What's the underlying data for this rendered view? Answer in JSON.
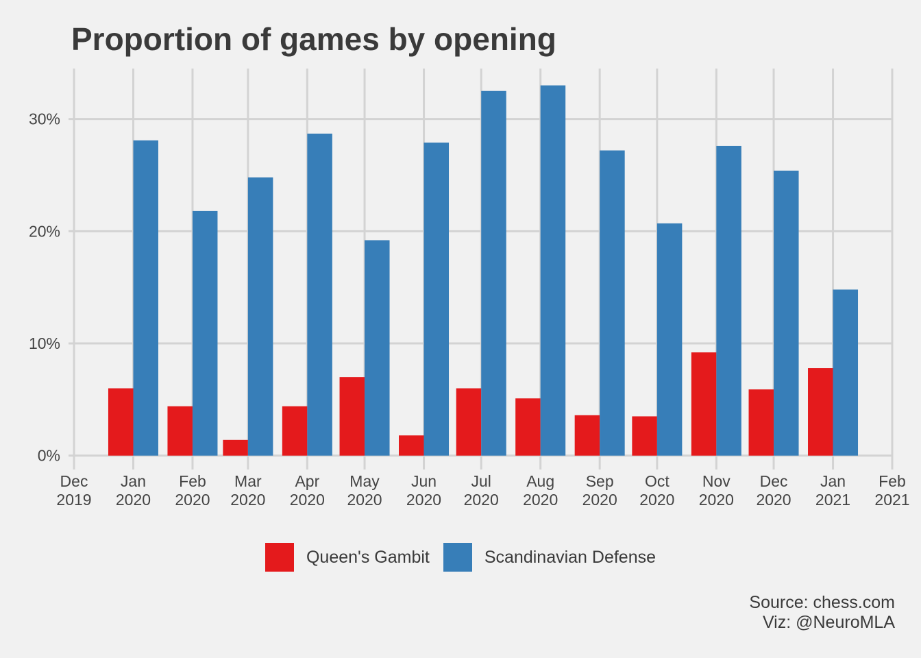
{
  "chart_data": {
    "type": "bar",
    "title": "Proportion of games by opening",
    "xlabel": "",
    "ylabel": "",
    "ylim": [
      -0.0075,
      0.345
    ],
    "y_ticks": [
      0,
      0.1,
      0.2,
      0.3
    ],
    "y_tick_labels": [
      "0%",
      "10%",
      "20%",
      "30%"
    ],
    "x_ticks": [
      {
        "date": "2019-12-01",
        "line1": "Dec",
        "line2": "2019"
      },
      {
        "date": "2020-01-01",
        "line1": "Jan",
        "line2": "2020"
      },
      {
        "date": "2020-02-01",
        "line1": "Feb",
        "line2": "2020"
      },
      {
        "date": "2020-03-01",
        "line1": "Mar",
        "line2": "2020"
      },
      {
        "date": "2020-04-01",
        "line1": "Apr",
        "line2": "2020"
      },
      {
        "date": "2020-05-01",
        "line1": "May",
        "line2": "2020"
      },
      {
        "date": "2020-06-01",
        "line1": "Jun",
        "line2": "2020"
      },
      {
        "date": "2020-07-01",
        "line1": "Jul",
        "line2": "2020"
      },
      {
        "date": "2020-08-01",
        "line1": "Aug",
        "line2": "2020"
      },
      {
        "date": "2020-09-01",
        "line1": "Sep",
        "line2": "2020"
      },
      {
        "date": "2020-10-01",
        "line1": "Oct",
        "line2": "2020"
      },
      {
        "date": "2020-11-01",
        "line1": "Nov",
        "line2": "2020"
      },
      {
        "date": "2020-12-01",
        "line1": "Dec",
        "line2": "2020"
      },
      {
        "date": "2021-01-01",
        "line1": "Jan",
        "line2": "2021"
      },
      {
        "date": "2021-02-01",
        "line1": "Feb",
        "line2": "2021"
      }
    ],
    "x": [
      "2020-01-01",
      "2020-02-01",
      "2020-03-01",
      "2020-04-01",
      "2020-05-01",
      "2020-06-01",
      "2020-07-01",
      "2020-08-01",
      "2020-09-01",
      "2020-10-01",
      "2020-11-01",
      "2020-12-01",
      "2021-01-01"
    ],
    "series": [
      {
        "name": "Queen's Gambit",
        "color": "#e41a1c",
        "values": [
          0.06,
          0.044,
          0.014,
          0.044,
          0.07,
          0.018,
          0.06,
          0.051,
          0.036,
          0.035,
          0.092,
          0.059,
          0.078
        ]
      },
      {
        "name": "Scandinavian Defense",
        "color": "#377eb8",
        "values": [
          0.281,
          0.218,
          0.248,
          0.287,
          0.192,
          0.279,
          0.325,
          0.33,
          0.272,
          0.207,
          0.276,
          0.254,
          0.148
        ]
      }
    ],
    "grid": true,
    "legend_position": "bottom"
  },
  "caption": {
    "line1": "Source: chess.com",
    "line2": "Viz: @NeuroMLA"
  }
}
